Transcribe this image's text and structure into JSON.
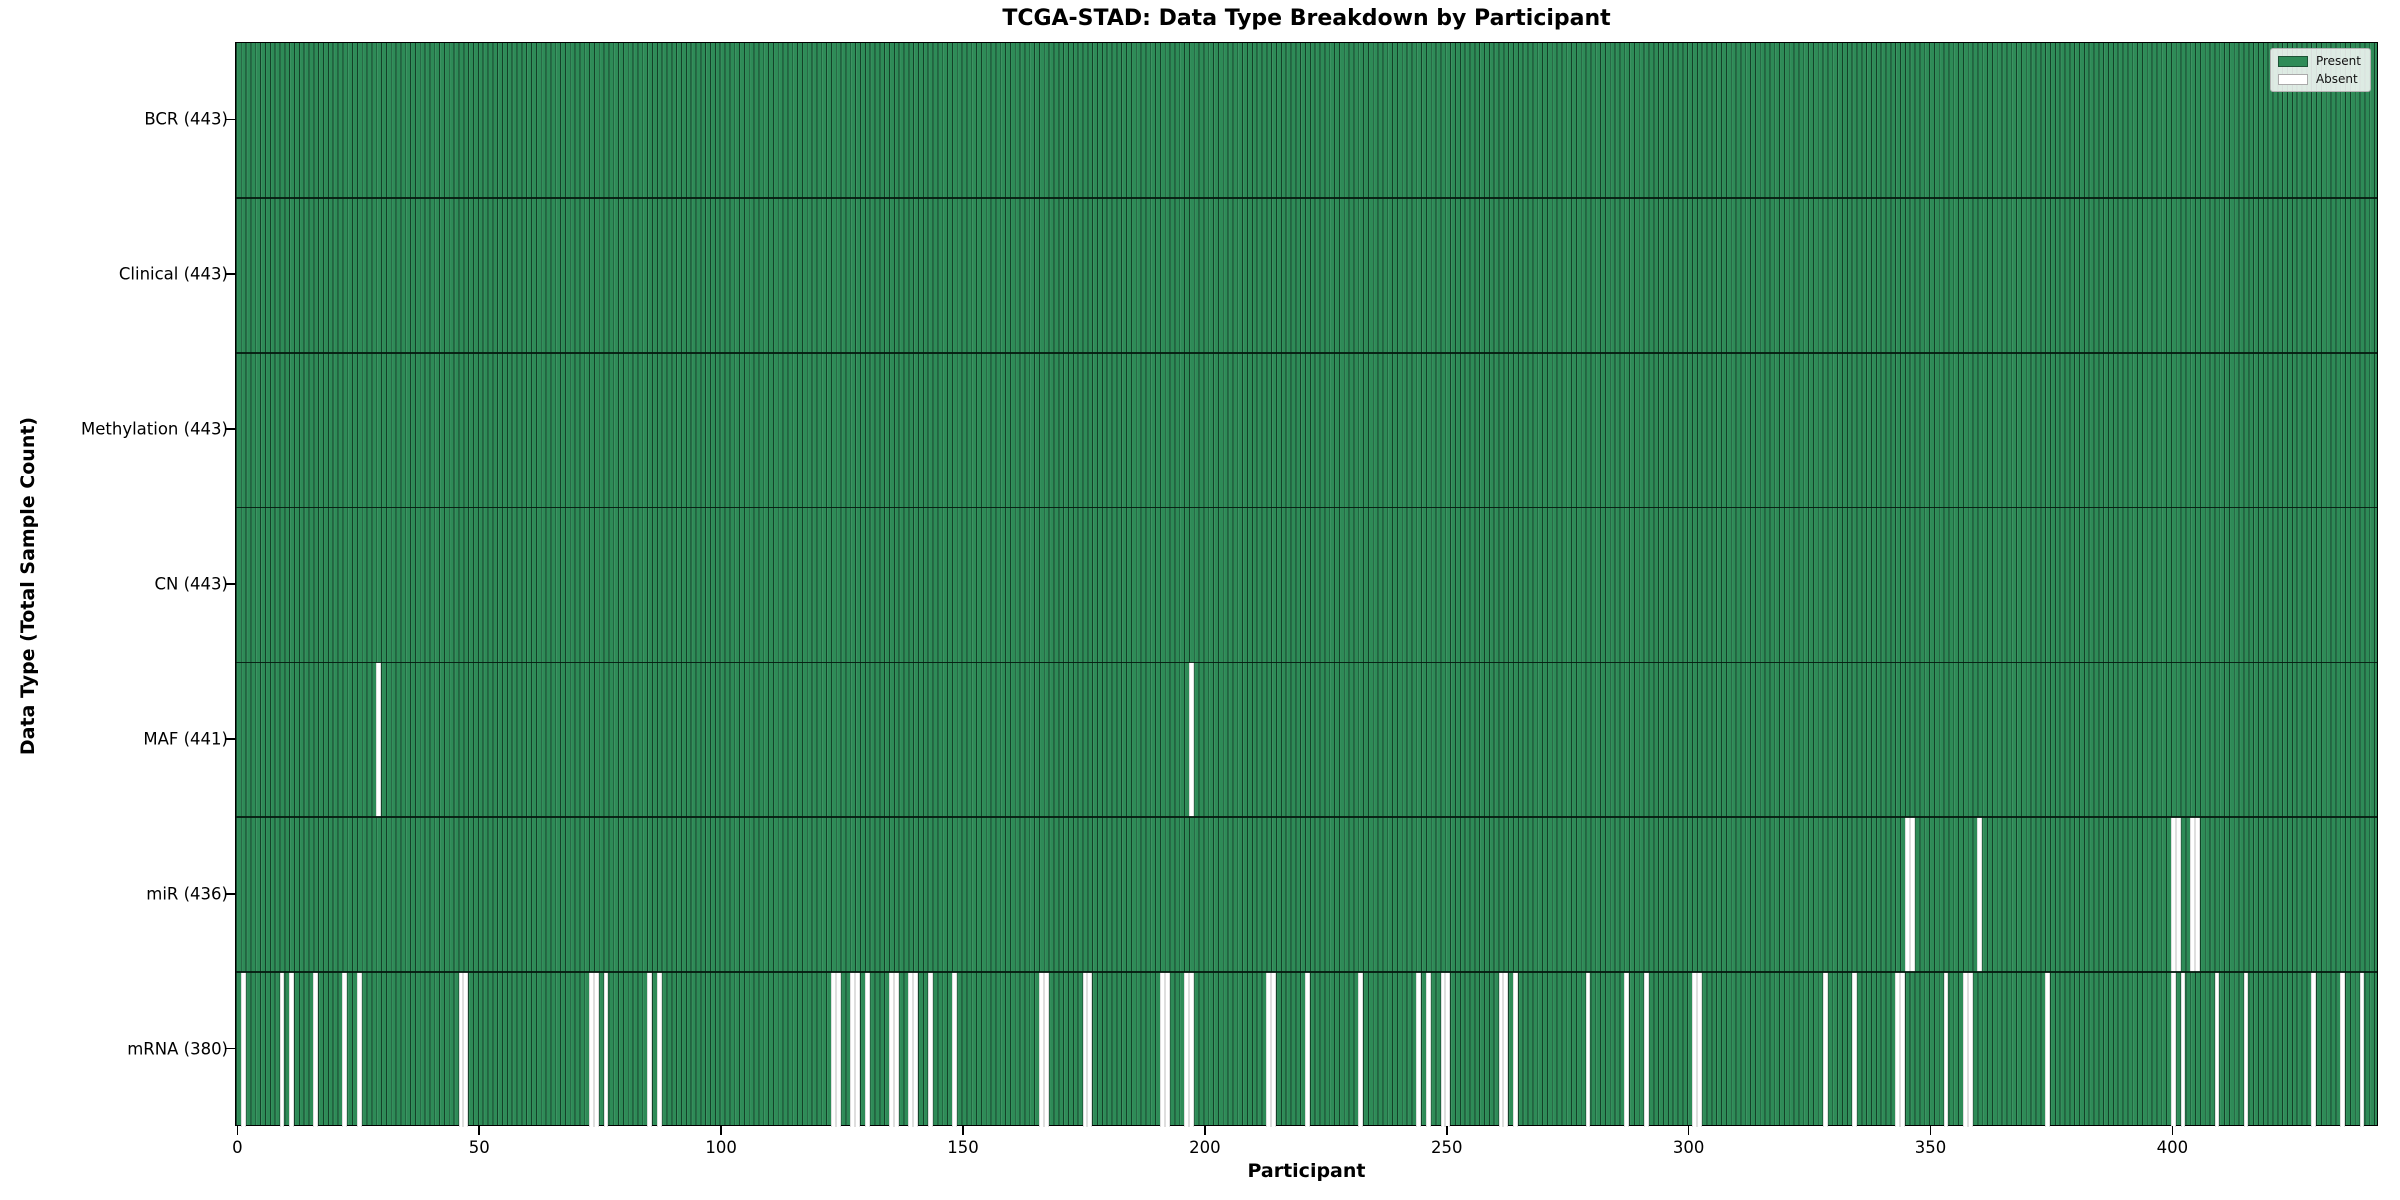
{
  "title": "TCGA-STAD: Data Type Breakdown by Participant",
  "chart_data": {
    "type": "heatmap",
    "title": "TCGA-STAD: Data Type Breakdown by Participant",
    "xlabel": "Participant",
    "ylabel": "Data Type (Total Sample Count)",
    "n_participants": 443,
    "x_ticks": [
      0,
      50,
      100,
      150,
      200,
      250,
      300,
      350,
      400
    ],
    "xlim": [
      0,
      443
    ],
    "grid": false,
    "legend_position": "upper right",
    "legend": [
      {
        "label": "Present",
        "color": "#2e8b57"
      },
      {
        "label": "Absent",
        "color": "#ffffff"
      }
    ],
    "colors": {
      "present": "#2e8b57",
      "absent": "#ffffff",
      "bar_edge": "#0a2819",
      "row_separator": "#051910",
      "plot_border": "#000000",
      "legend_background": "#fcfcfc",
      "legend_border": "#b3b3b3"
    },
    "rows": [
      {
        "label": "BCR (443)",
        "data_type": "BCR",
        "present_count": 443,
        "absent": []
      },
      {
        "label": "Clinical (443)",
        "data_type": "Clinical",
        "present_count": 443,
        "absent": []
      },
      {
        "label": "Methylation (443)",
        "data_type": "Methylation",
        "present_count": 443,
        "absent": []
      },
      {
        "label": "CN (443)",
        "data_type": "CN",
        "present_count": 443,
        "absent": []
      },
      {
        "label": "MAF (441)",
        "data_type": "MAF",
        "present_count": 441,
        "absent": [
          29,
          197
        ]
      },
      {
        "label": "miR (436)",
        "data_type": "miR",
        "present_count": 436,
        "absent": [
          345,
          346,
          360,
          400,
          401,
          404,
          405
        ]
      },
      {
        "label": "mRNA (380)",
        "data_type": "mRNA",
        "present_count": 380,
        "absent": [
          1,
          9,
          11,
          16,
          22,
          25,
          46,
          47,
          73,
          74,
          76,
          85,
          87,
          123,
          124,
          127,
          128,
          130,
          135,
          136,
          139,
          140,
          143,
          148,
          166,
          167,
          175,
          176,
          191,
          192,
          196,
          197,
          213,
          214,
          221,
          232,
          244,
          246,
          249,
          250,
          261,
          262,
          264,
          279,
          287,
          291,
          301,
          302,
          328,
          334,
          343,
          344,
          353,
          357,
          358,
          374,
          400,
          402,
          409,
          415,
          429,
          435,
          439
        ]
      }
    ]
  }
}
